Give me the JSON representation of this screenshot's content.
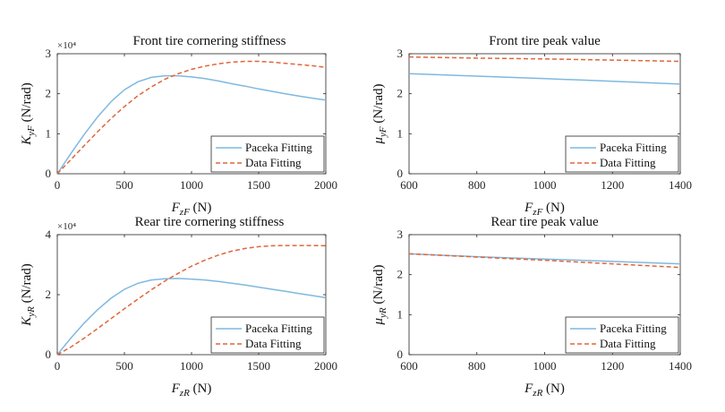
{
  "chart_data": [
    {
      "type": "line",
      "title": "Front tire cornering stiffness",
      "xlabel": "F_zF (N)",
      "ylabel": "K_yF (N/rad)",
      "multiplier": "×10⁴",
      "xlim": [
        0,
        2000
      ],
      "ylim": [
        0,
        3
      ],
      "xticks": [
        "0",
        "500",
        "1000",
        "1500",
        "2000"
      ],
      "yticks": [
        "0",
        "1",
        "2",
        "3"
      ],
      "legend": "bottom-right",
      "grid": false,
      "series": [
        {
          "name": "Paceka Fitting",
          "color": "#7fb8e0",
          "dash": "solid",
          "x": [
            0,
            100,
            200,
            300,
            400,
            500,
            600,
            700,
            800,
            900,
            1000,
            1100,
            1200,
            1300,
            1400,
            1500,
            1600,
            1700,
            1800,
            1900,
            2000
          ],
          "y": [
            0,
            0.5,
            0.98,
            1.42,
            1.8,
            2.1,
            2.3,
            2.41,
            2.45,
            2.45,
            2.42,
            2.38,
            2.32,
            2.25,
            2.19,
            2.12,
            2.06,
            2.0,
            1.94,
            1.89,
            1.84
          ]
        },
        {
          "name": "Data Fitting",
          "color": "#e0663a",
          "dash": "dashed",
          "x": [
            0,
            100,
            200,
            300,
            400,
            500,
            600,
            700,
            800,
            900,
            1000,
            1100,
            1200,
            1300,
            1400,
            1500,
            1600,
            1700,
            1800,
            1900,
            2000
          ],
          "y": [
            0,
            0.35,
            0.7,
            1.05,
            1.38,
            1.68,
            1.95,
            2.17,
            2.36,
            2.5,
            2.61,
            2.69,
            2.75,
            2.79,
            2.81,
            2.81,
            2.79,
            2.76,
            2.73,
            2.7,
            2.66
          ]
        }
      ]
    },
    {
      "type": "line",
      "title": "Front tire peak value",
      "xlabel": "F_zF (N)",
      "ylabel": "μ_yF (N/rad)",
      "multiplier": "",
      "xlim": [
        600,
        1400
      ],
      "ylim": [
        0,
        3
      ],
      "xticks": [
        "600",
        "800",
        "1000",
        "1200",
        "1400"
      ],
      "yticks": [
        "0",
        "1",
        "2",
        "3"
      ],
      "legend": "bottom-right",
      "grid": false,
      "series": [
        {
          "name": "Paceka Fitting",
          "color": "#7fb8e0",
          "dash": "solid",
          "x": [
            600,
            800,
            1000,
            1200,
            1400
          ],
          "y": [
            2.5,
            2.44,
            2.38,
            2.31,
            2.24
          ]
        },
        {
          "name": "Data Fitting",
          "color": "#e0663a",
          "dash": "dashed",
          "x": [
            600,
            800,
            1000,
            1200,
            1400
          ],
          "y": [
            2.92,
            2.89,
            2.87,
            2.84,
            2.81
          ]
        }
      ]
    },
    {
      "type": "line",
      "title": "Rear tire cornering stiffness",
      "xlabel": "F_zR (N)",
      "ylabel": "K_yR (N/rad)",
      "multiplier": "×10⁴",
      "xlim": [
        0,
        2000
      ],
      "ylim": [
        0,
        4
      ],
      "xticks": [
        "0",
        "500",
        "1000",
        "1500",
        "2000"
      ],
      "yticks": [
        "0",
        "2",
        "4"
      ],
      "legend": "bottom-right",
      "grid": false,
      "series": [
        {
          "name": "Paceka Fitting",
          "color": "#7fb8e0",
          "dash": "solid",
          "x": [
            0,
            100,
            200,
            300,
            400,
            500,
            600,
            700,
            800,
            900,
            1000,
            1100,
            1200,
            1300,
            1400,
            1500,
            1600,
            1700,
            1800,
            1900,
            2000
          ],
          "y": [
            0,
            0.55,
            1.05,
            1.5,
            1.88,
            2.18,
            2.38,
            2.49,
            2.53,
            2.54,
            2.52,
            2.49,
            2.44,
            2.38,
            2.32,
            2.25,
            2.18,
            2.11,
            2.04,
            1.97,
            1.9
          ]
        },
        {
          "name": "Data Fitting",
          "color": "#e0663a",
          "dash": "dashed",
          "x": [
            0,
            100,
            200,
            300,
            400,
            500,
            600,
            700,
            800,
            900,
            1000,
            1100,
            1200,
            1300,
            1400,
            1500,
            1600,
            1700,
            1800,
            1900,
            2000
          ],
          "y": [
            0,
            0.25,
            0.55,
            0.87,
            1.2,
            1.53,
            1.85,
            2.16,
            2.45,
            2.71,
            2.95,
            3.15,
            3.32,
            3.45,
            3.54,
            3.6,
            3.63,
            3.64,
            3.64,
            3.64,
            3.63
          ]
        }
      ]
    },
    {
      "type": "line",
      "title": "Rear tire peak value",
      "xlabel": "F_zR (N)",
      "ylabel": "μ_yR (N/rad)",
      "multiplier": "",
      "xlim": [
        600,
        1400
      ],
      "ylim": [
        0,
        3
      ],
      "xticks": [
        "600",
        "800",
        "1000",
        "1200",
        "1400"
      ],
      "yticks": [
        "0",
        "1",
        "2",
        "3"
      ],
      "legend": "bottom-right",
      "grid": false,
      "series": [
        {
          "name": "Paceka Fitting",
          "color": "#7fb8e0",
          "dash": "solid",
          "x": [
            600,
            800,
            1000,
            1200,
            1400
          ],
          "y": [
            2.52,
            2.45,
            2.39,
            2.33,
            2.27
          ]
        },
        {
          "name": "Data Fitting",
          "color": "#e0663a",
          "dash": "dashed",
          "x": [
            600,
            800,
            1000,
            1200,
            1400
          ],
          "y": [
            2.52,
            2.44,
            2.36,
            2.27,
            2.18
          ]
        }
      ]
    }
  ]
}
